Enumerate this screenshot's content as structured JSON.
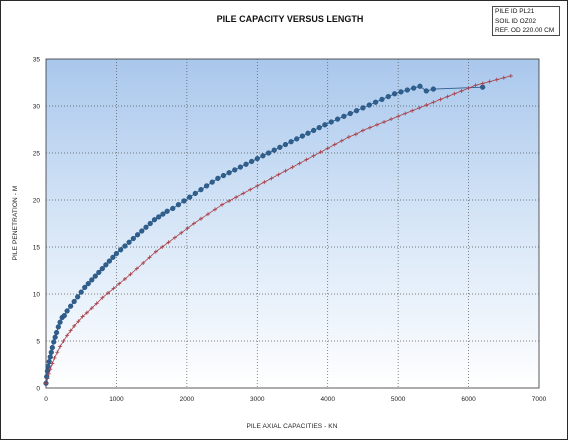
{
  "info_box": {
    "lines": [
      "PILE ID PL21",
      "SOIL ID OZ02",
      "REF. OD 220.00 CM"
    ]
  },
  "chart_data": {
    "type": "line",
    "title": "PILE CAPACITY VERSUS LENGTH",
    "xlabel": "PILE AXIAL CAPACITIES - KN",
    "ylabel": "PILE PENETRATION - M",
    "xlim": [
      0,
      7000
    ],
    "ylim": [
      0,
      35
    ],
    "xticks": [
      0,
      1000,
      2000,
      3000,
      4000,
      5000,
      6000,
      7000
    ],
    "yticks": [
      0,
      5,
      10,
      15,
      20,
      25,
      30,
      35
    ],
    "grid": true,
    "grid_style": "dotted",
    "background": "gradient light blue (top) to white (bottom)",
    "colors": {
      "series_1": "#2e5f8e",
      "series_2": "#a8404a",
      "grid": "#555555"
    },
    "series": [
      {
        "marker": "circle",
        "x": [
          0,
          10,
          20,
          30,
          45,
          60,
          75,
          90,
          110,
          130,
          150,
          175,
          200,
          230,
          260,
          300,
          350,
          400,
          450,
          500,
          550,
          600,
          650,
          700,
          750,
          800,
          850,
          900,
          950,
          1000,
          1060,
          1120,
          1180,
          1240,
          1300,
          1360,
          1420,
          1480,
          1540,
          1600,
          1660,
          1720,
          1800,
          1880,
          1960,
          2040,
          2120,
          2200,
          2280,
          2360,
          2440,
          2520,
          2600,
          2680,
          2760,
          2840,
          2920,
          3000,
          3080,
          3160,
          3240,
          3320,
          3400,
          3480,
          3560,
          3640,
          3720,
          3800,
          3880,
          3960,
          4050,
          4140,
          4230,
          4320,
          4410,
          4500,
          4590,
          4680,
          4770,
          4860,
          4950,
          5040,
          5130,
          5220,
          5310,
          5400,
          5500,
          6200
        ],
        "y": [
          0.5,
          1.2,
          1.8,
          2.3,
          2.8,
          3.3,
          3.8,
          4.3,
          4.9,
          5.4,
          5.9,
          6.5,
          7.0,
          7.5,
          7.7,
          8.2,
          8.7,
          9.2,
          9.7,
          10.2,
          10.7,
          11.1,
          11.5,
          11.9,
          12.3,
          12.7,
          13.1,
          13.5,
          13.9,
          14.3,
          14.7,
          15.1,
          15.5,
          15.9,
          16.3,
          16.7,
          17.1,
          17.5,
          17.9,
          18.2,
          18.5,
          18.8,
          19.1,
          19.5,
          19.9,
          20.3,
          20.7,
          21.1,
          21.5,
          21.9,
          22.3,
          22.6,
          22.9,
          23.2,
          23.5,
          23.8,
          24.1,
          24.4,
          24.7,
          25.0,
          25.3,
          25.6,
          25.9,
          26.2,
          26.5,
          26.8,
          27.1,
          27.4,
          27.7,
          28.0,
          28.3,
          28.6,
          28.9,
          29.2,
          29.5,
          29.8,
          30.1,
          30.4,
          30.7,
          31.0,
          31.3,
          31.5,
          31.7,
          31.9,
          32.1,
          31.6,
          31.8,
          32.0
        ]
      },
      {
        "marker": "plus",
        "x": [
          0,
          20,
          40,
          60,
          90,
          120,
          160,
          200,
          250,
          300,
          350,
          400,
          460,
          520,
          580,
          650,
          720,
          800,
          880,
          960,
          1040,
          1120,
          1200,
          1290,
          1380,
          1470,
          1560,
          1650,
          1740,
          1830,
          1920,
          2010,
          2100,
          2200,
          2300,
          2400,
          2500,
          2600,
          2700,
          2800,
          2900,
          3000,
          3100,
          3200,
          3300,
          3400,
          3500,
          3600,
          3700,
          3800,
          3900,
          4000,
          4100,
          4200,
          4300,
          4400,
          4500,
          4600,
          4700,
          4800,
          4900,
          5000,
          5100,
          5200,
          5300,
          5400,
          5500,
          5600,
          5700,
          5800,
          5900,
          6000,
          6100,
          6200,
          6300,
          6400,
          6500,
          6600
        ],
        "y": [
          0.5,
          1.0,
          1.5,
          2.0,
          2.6,
          3.2,
          3.8,
          4.4,
          5.0,
          5.6,
          6.1,
          6.6,
          7.1,
          7.6,
          8.0,
          8.5,
          9.0,
          9.6,
          10.1,
          10.6,
          11.1,
          11.6,
          12.1,
          12.7,
          13.3,
          13.9,
          14.5,
          15.0,
          15.5,
          16.0,
          16.5,
          17.0,
          17.5,
          18.0,
          18.5,
          19.0,
          19.5,
          19.9,
          20.3,
          20.7,
          21.1,
          21.5,
          21.9,
          22.3,
          22.7,
          23.1,
          23.5,
          23.9,
          24.3,
          24.7,
          25.1,
          25.5,
          25.9,
          26.3,
          26.7,
          27.0,
          27.4,
          27.7,
          28.0,
          28.3,
          28.6,
          28.9,
          29.2,
          29.5,
          29.8,
          30.1,
          30.4,
          30.7,
          31.0,
          31.3,
          31.6,
          31.9,
          32.2,
          32.4,
          32.6,
          32.8,
          33.0,
          33.2
        ]
      }
    ]
  }
}
